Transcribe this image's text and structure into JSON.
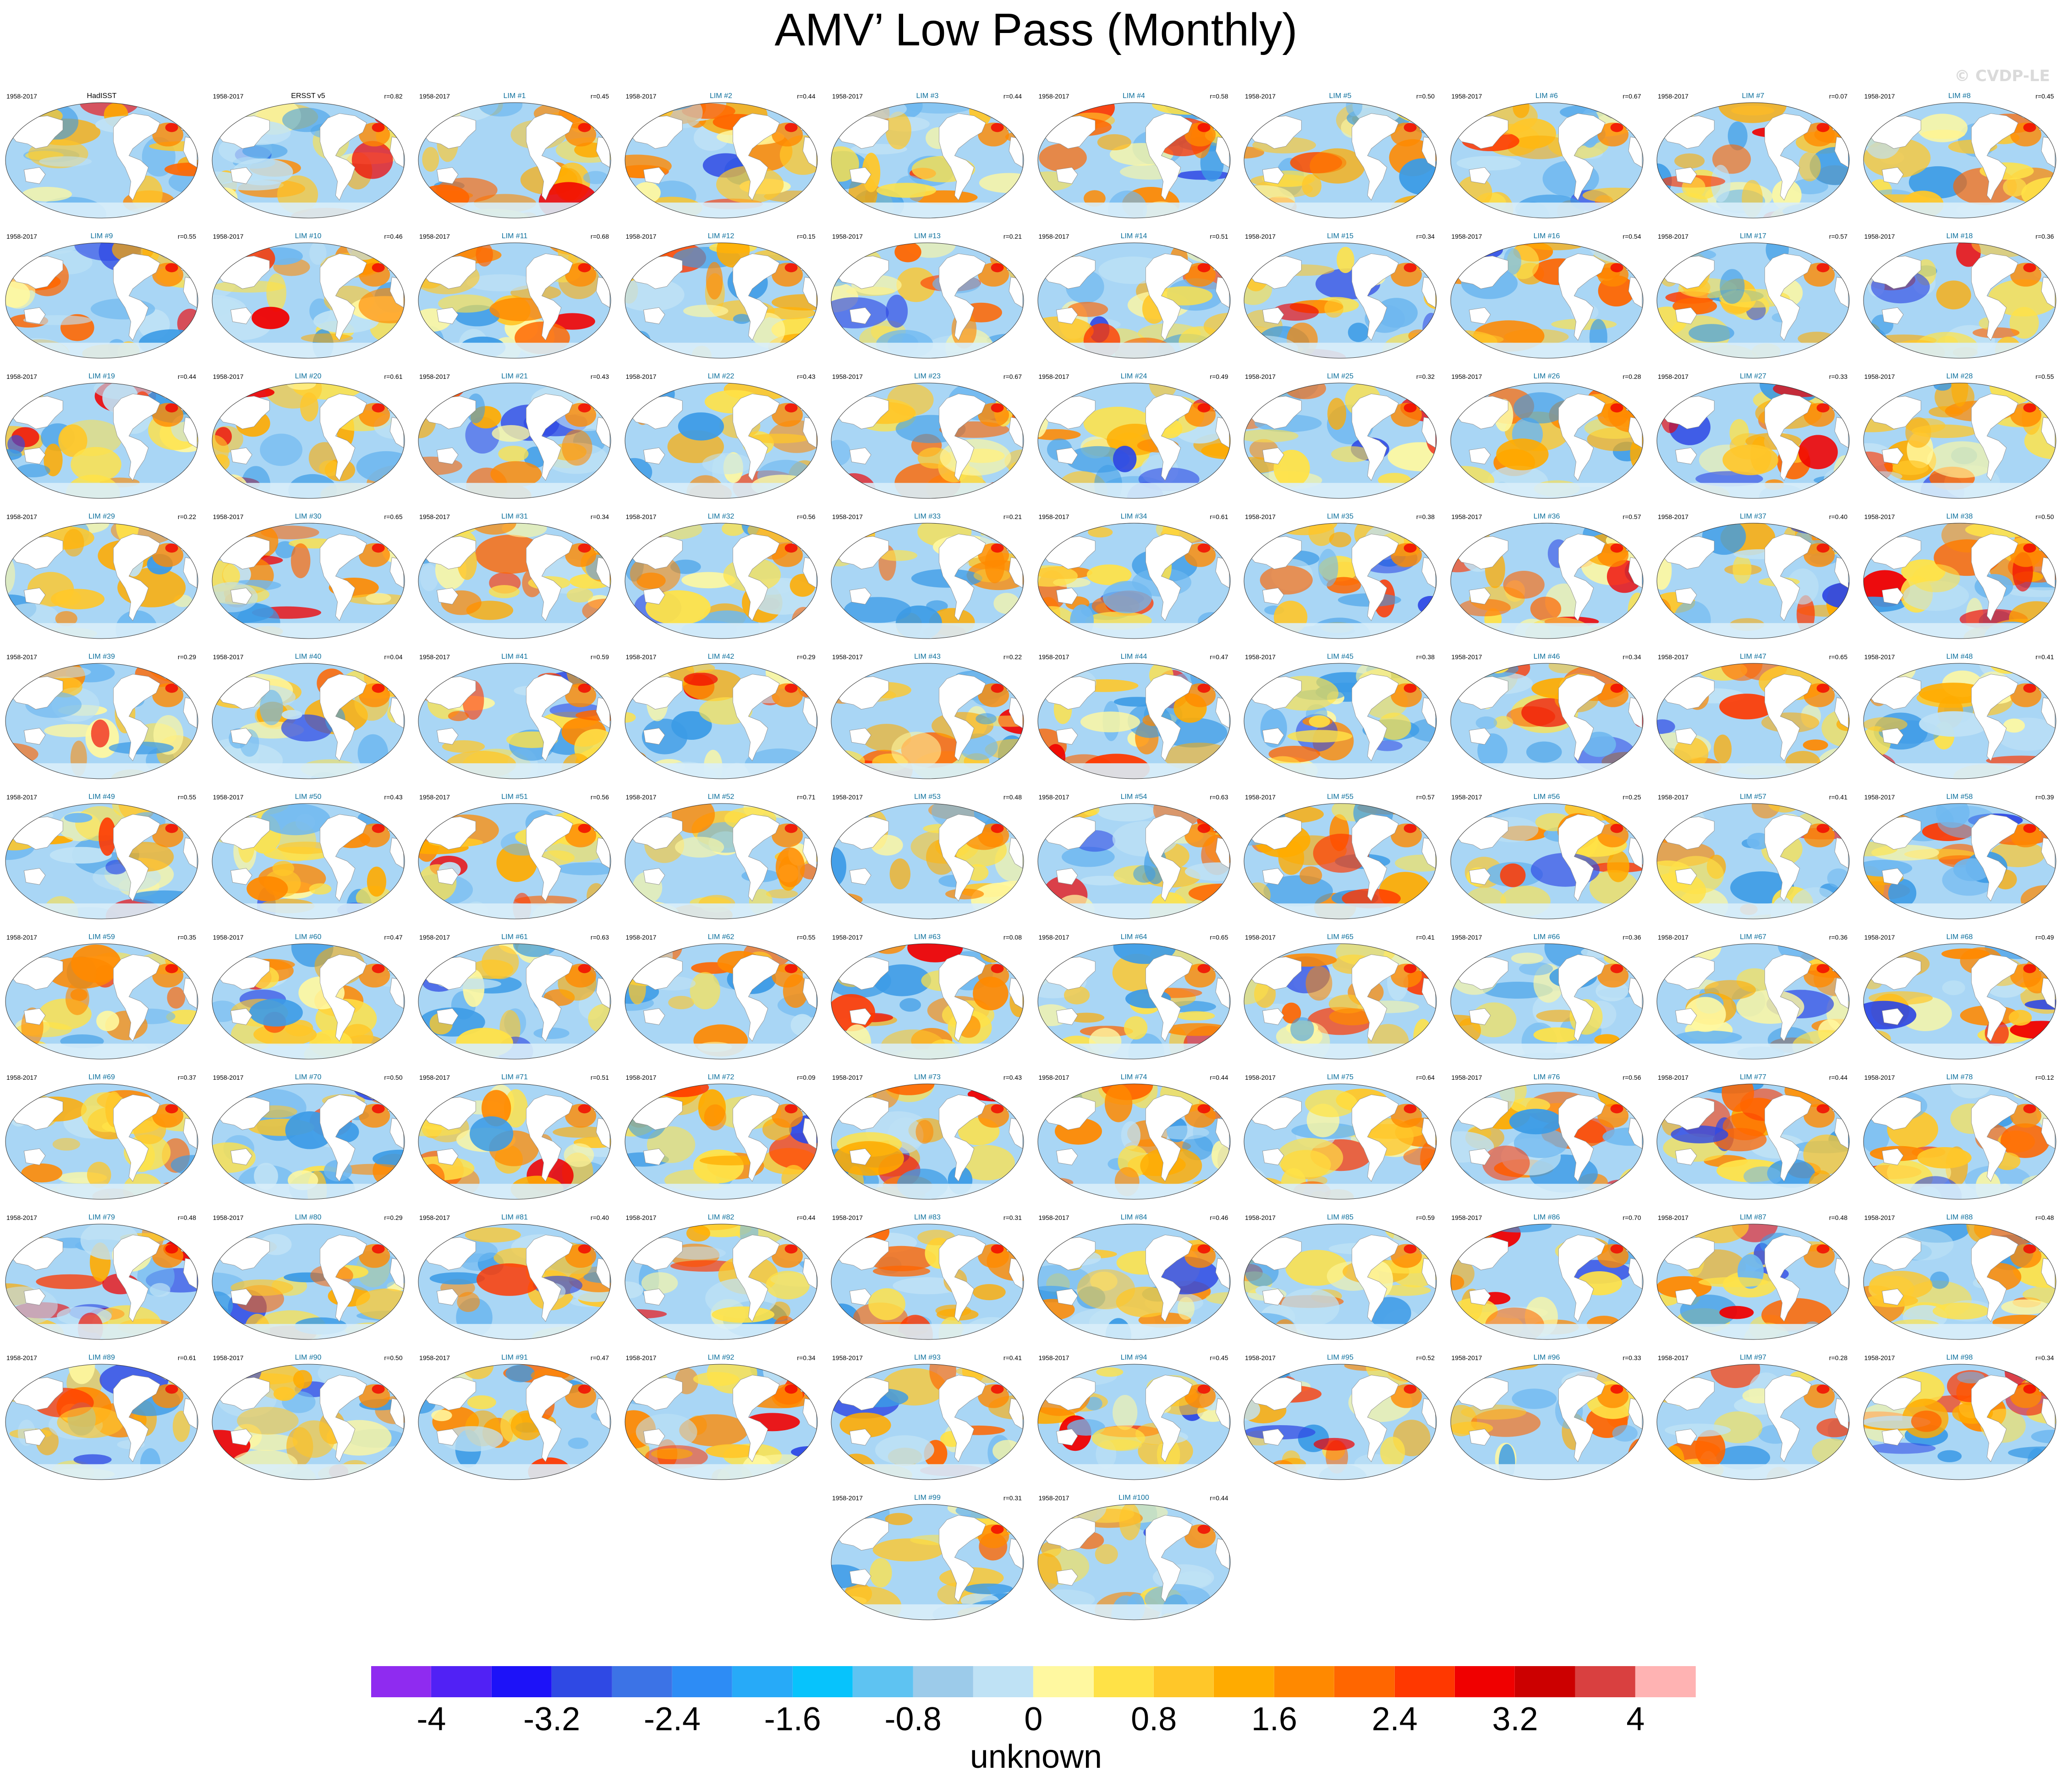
{
  "title": "AMV’ Low Pass (Monthly)",
  "copyright": "© CVDP-LE",
  "units": "unknown",
  "colorbar": {
    "colors": [
      "#8f2bf0",
      "#5121f5",
      "#1d12f8",
      "#2f49e4",
      "#3c73e6",
      "#2d8cf5",
      "#27aaf8",
      "#07c3fc",
      "#5ec3f2",
      "#9ccbea",
      "#bfe2f5",
      "#fff8a0",
      "#ffe247",
      "#ffc729",
      "#ffab00",
      "#ff8900",
      "#ff6600",
      "#ff3800",
      "#f00000",
      "#cc0000",
      "#d94040",
      "#ffb3b3"
    ],
    "tick_labels": [
      "-4",
      "-3.2",
      "-2.4",
      "-1.6",
      "-0.8",
      "0",
      "0.8",
      "1.6",
      "2.4",
      "3.2",
      "4"
    ]
  },
  "panels": [
    {
      "title": "HadISST",
      "period": "1958-2017",
      "corr": ""
    },
    {
      "title": "ERSST v5",
      "period": "1958-2017",
      "corr": "r=0.82"
    },
    {
      "title": "LIM #1",
      "period": "1958-2017",
      "corr": "r=0.45"
    },
    {
      "title": "LIM #2",
      "period": "1958-2017",
      "corr": "r=0.44"
    },
    {
      "title": "LIM #3",
      "period": "1958-2017",
      "corr": "r=0.44"
    },
    {
      "title": "LIM #4",
      "period": "1958-2017",
      "corr": "r=0.58"
    },
    {
      "title": "LIM #5",
      "period": "1958-2017",
      "corr": "r=0.50"
    },
    {
      "title": "LIM #6",
      "period": "1958-2017",
      "corr": "r=0.67"
    },
    {
      "title": "LIM #7",
      "period": "1958-2017",
      "corr": "r=0.07"
    },
    {
      "title": "LIM #8",
      "period": "1958-2017",
      "corr": "r=0.45"
    },
    {
      "title": "LIM #9",
      "period": "1958-2017",
      "corr": "r=0.55"
    },
    {
      "title": "LIM #10",
      "period": "1958-2017",
      "corr": "r=0.46"
    },
    {
      "title": "LIM #11",
      "period": "1958-2017",
      "corr": "r=0.68"
    },
    {
      "title": "LIM #12",
      "period": "1958-2017",
      "corr": "r=0.15"
    },
    {
      "title": "LIM #13",
      "period": "1958-2017",
      "corr": "r=0.21"
    },
    {
      "title": "LIM #14",
      "period": "1958-2017",
      "corr": "r=0.51"
    },
    {
      "title": "LIM #15",
      "period": "1958-2017",
      "corr": "r=0.34"
    },
    {
      "title": "LIM #16",
      "period": "1958-2017",
      "corr": "r=0.54"
    },
    {
      "title": "LIM #17",
      "period": "1958-2017",
      "corr": "r=0.57"
    },
    {
      "title": "LIM #18",
      "period": "1958-2017",
      "corr": "r=0.36"
    },
    {
      "title": "LIM #19",
      "period": "1958-2017",
      "corr": "r=0.44"
    },
    {
      "title": "LIM #20",
      "period": "1958-2017",
      "corr": "r=0.61"
    },
    {
      "title": "LIM #21",
      "period": "1958-2017",
      "corr": "r=0.43"
    },
    {
      "title": "LIM #22",
      "period": "1958-2017",
      "corr": "r=0.43"
    },
    {
      "title": "LIM #23",
      "period": "1958-2017",
      "corr": "r=0.67"
    },
    {
      "title": "LIM #24",
      "period": "1958-2017",
      "corr": "r=0.49"
    },
    {
      "title": "LIM #25",
      "period": "1958-2017",
      "corr": "r=0.32"
    },
    {
      "title": "LIM #26",
      "period": "1958-2017",
      "corr": "r=0.28"
    },
    {
      "title": "LIM #27",
      "period": "1958-2017",
      "corr": "r=0.33"
    },
    {
      "title": "LIM #28",
      "period": "1958-2017",
      "corr": "r=0.55"
    },
    {
      "title": "LIM #29",
      "period": "1958-2017",
      "corr": "r=0.22"
    },
    {
      "title": "LIM #30",
      "period": "1958-2017",
      "corr": "r=0.65"
    },
    {
      "title": "LIM #31",
      "period": "1958-2017",
      "corr": "r=0.34"
    },
    {
      "title": "LIM #32",
      "period": "1958-2017",
      "corr": "r=0.56"
    },
    {
      "title": "LIM #33",
      "period": "1958-2017",
      "corr": "r=0.21"
    },
    {
      "title": "LIM #34",
      "period": "1958-2017",
      "corr": "r=0.61"
    },
    {
      "title": "LIM #35",
      "period": "1958-2017",
      "corr": "r=0.38"
    },
    {
      "title": "LIM #36",
      "period": "1958-2017",
      "corr": "r=0.57"
    },
    {
      "title": "LIM #37",
      "period": "1958-2017",
      "corr": "r=0.40"
    },
    {
      "title": "LIM #38",
      "period": "1958-2017",
      "corr": "r=0.50"
    },
    {
      "title": "LIM #39",
      "period": "1958-2017",
      "corr": "r=0.29"
    },
    {
      "title": "LIM #40",
      "period": "1958-2017",
      "corr": "r=0.04"
    },
    {
      "title": "LIM #41",
      "period": "1958-2017",
      "corr": "r=0.59"
    },
    {
      "title": "LIM #42",
      "period": "1958-2017",
      "corr": "r=0.29"
    },
    {
      "title": "LIM #43",
      "period": "1958-2017",
      "corr": "r=0.22"
    },
    {
      "title": "LIM #44",
      "period": "1958-2017",
      "corr": "r=0.47"
    },
    {
      "title": "LIM #45",
      "period": "1958-2017",
      "corr": "r=0.38"
    },
    {
      "title": "LIM #46",
      "period": "1958-2017",
      "corr": "r=0.34"
    },
    {
      "title": "LIM #47",
      "period": "1958-2017",
      "corr": "r=0.65"
    },
    {
      "title": "LIM #48",
      "period": "1958-2017",
      "corr": "r=0.41"
    },
    {
      "title": "LIM #49",
      "period": "1958-2017",
      "corr": "r=0.55"
    },
    {
      "title": "LIM #50",
      "period": "1958-2017",
      "corr": "r=0.43"
    },
    {
      "title": "LIM #51",
      "period": "1958-2017",
      "corr": "r=0.56"
    },
    {
      "title": "LIM #52",
      "period": "1958-2017",
      "corr": "r=0.71"
    },
    {
      "title": "LIM #53",
      "period": "1958-2017",
      "corr": "r=0.48"
    },
    {
      "title": "LIM #54",
      "period": "1958-2017",
      "corr": "r=0.63"
    },
    {
      "title": "LIM #55",
      "period": "1958-2017",
      "corr": "r=0.57"
    },
    {
      "title": "LIM #56",
      "period": "1958-2017",
      "corr": "r=0.25"
    },
    {
      "title": "LIM #57",
      "period": "1958-2017",
      "corr": "r=0.41"
    },
    {
      "title": "LIM #58",
      "period": "1958-2017",
      "corr": "r=0.39"
    },
    {
      "title": "LIM #59",
      "period": "1958-2017",
      "corr": "r=0.35"
    },
    {
      "title": "LIM #60",
      "period": "1958-2017",
      "corr": "r=0.47"
    },
    {
      "title": "LIM #61",
      "period": "1958-2017",
      "corr": "r=0.63"
    },
    {
      "title": "LIM #62",
      "period": "1958-2017",
      "corr": "r=0.55"
    },
    {
      "title": "LIM #63",
      "period": "1958-2017",
      "corr": "r=0.08"
    },
    {
      "title": "LIM #64",
      "period": "1958-2017",
      "corr": "r=0.65"
    },
    {
      "title": "LIM #65",
      "period": "1958-2017",
      "corr": "r=0.41"
    },
    {
      "title": "LIM #66",
      "period": "1958-2017",
      "corr": "r=0.36"
    },
    {
      "title": "LIM #67",
      "period": "1958-2017",
      "corr": "r=0.36"
    },
    {
      "title": "LIM #68",
      "period": "1958-2017",
      "corr": "r=0.49"
    },
    {
      "title": "LIM #69",
      "period": "1958-2017",
      "corr": "r=0.37"
    },
    {
      "title": "LIM #70",
      "period": "1958-2017",
      "corr": "r=0.50"
    },
    {
      "title": "LIM #71",
      "period": "1958-2017",
      "corr": "r=0.51"
    },
    {
      "title": "LIM #72",
      "period": "1958-2017",
      "corr": "r=0.09"
    },
    {
      "title": "LIM #73",
      "period": "1958-2017",
      "corr": "r=0.43"
    },
    {
      "title": "LIM #74",
      "period": "1958-2017",
      "corr": "r=0.44"
    },
    {
      "title": "LIM #75",
      "period": "1958-2017",
      "corr": "r=0.64"
    },
    {
      "title": "LIM #76",
      "period": "1958-2017",
      "corr": "r=0.56"
    },
    {
      "title": "LIM #77",
      "period": "1958-2017",
      "corr": "r=0.44"
    },
    {
      "title": "LIM #78",
      "period": "1958-2017",
      "corr": "r=0.12"
    },
    {
      "title": "LIM #79",
      "period": "1958-2017",
      "corr": "r=0.48"
    },
    {
      "title": "LIM #80",
      "period": "1958-2017",
      "corr": "r=0.29"
    },
    {
      "title": "LIM #81",
      "period": "1958-2017",
      "corr": "r=0.40"
    },
    {
      "title": "LIM #82",
      "period": "1958-2017",
      "corr": "r=0.44"
    },
    {
      "title": "LIM #83",
      "period": "1958-2017",
      "corr": "r=0.31"
    },
    {
      "title": "LIM #84",
      "period": "1958-2017",
      "corr": "r=0.46"
    },
    {
      "title": "LIM #85",
      "period": "1958-2017",
      "corr": "r=0.59"
    },
    {
      "title": "LIM #86",
      "period": "1958-2017",
      "corr": "r=0.70"
    },
    {
      "title": "LIM #87",
      "period": "1958-2017",
      "corr": "r=0.48"
    },
    {
      "title": "LIM #88",
      "period": "1958-2017",
      "corr": "r=0.48"
    },
    {
      "title": "LIM #89",
      "period": "1958-2017",
      "corr": "r=0.61"
    },
    {
      "title": "LIM #90",
      "period": "1958-2017",
      "corr": "r=0.50"
    },
    {
      "title": "LIM #91",
      "period": "1958-2017",
      "corr": "r=0.47"
    },
    {
      "title": "LIM #92",
      "period": "1958-2017",
      "corr": "r=0.34"
    },
    {
      "title": "LIM #93",
      "period": "1958-2017",
      "corr": "r=0.41"
    },
    {
      "title": "LIM #94",
      "period": "1958-2017",
      "corr": "r=0.45"
    },
    {
      "title": "LIM #95",
      "period": "1958-2017",
      "corr": "r=0.52"
    },
    {
      "title": "LIM #96",
      "period": "1958-2017",
      "corr": "r=0.33"
    },
    {
      "title": "LIM #97",
      "period": "1958-2017",
      "corr": "r=0.28"
    },
    {
      "title": "LIM #98",
      "period": "1958-2017",
      "corr": "r=0.34"
    },
    {
      "title": "LIM #99",
      "period": "1958-2017",
      "corr": "r=0.31"
    },
    {
      "title": "LIM #100",
      "period": "1958-2017",
      "corr": "r=0.44"
    }
  ]
}
